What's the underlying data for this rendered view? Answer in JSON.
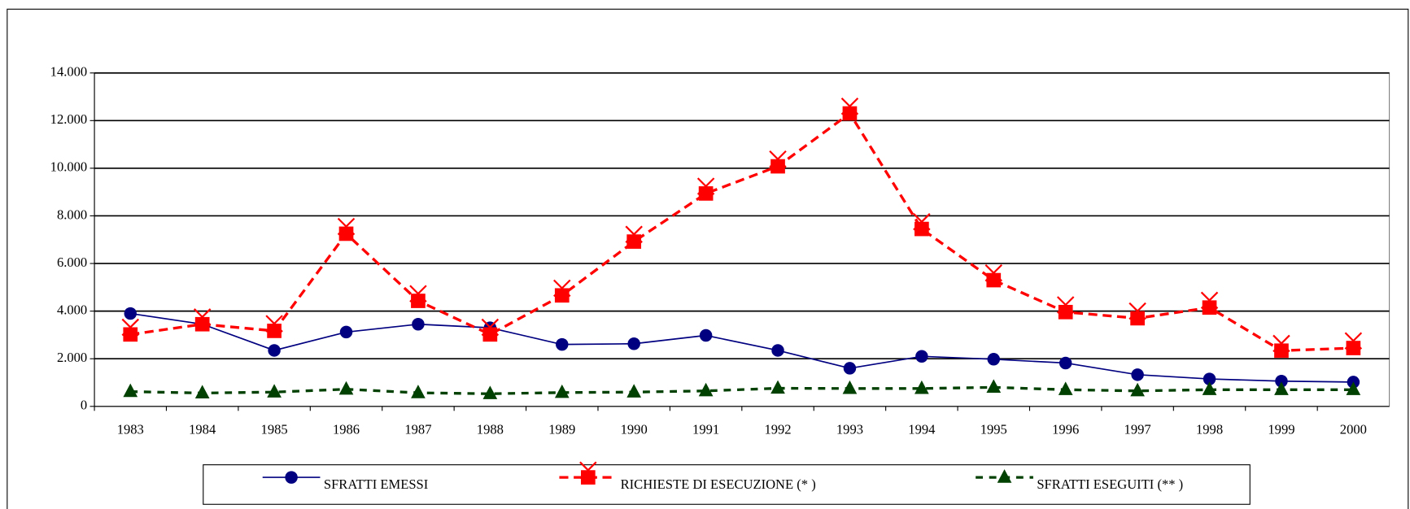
{
  "chart_data": {
    "type": "line",
    "categories": [
      "1983",
      "1984",
      "1985",
      "1986",
      "1987",
      "1988",
      "1989",
      "1990",
      "1991",
      "1992",
      "1993",
      "1994",
      "1995",
      "1996",
      "1997",
      "1998",
      "1999",
      "2000"
    ],
    "series": [
      {
        "name": "SFRATTI EMESSI",
        "color": "#000080",
        "marker": "circle",
        "dash": "none",
        "values": [
          3900,
          3450,
          2350,
          3120,
          3450,
          3300,
          2600,
          2630,
          2980,
          2350,
          1600,
          2100,
          1980,
          1820,
          1330,
          1150,
          1060,
          1020
        ]
      },
      {
        "name": "RICHIESTE DI ESECUZIONE  (* )",
        "color": "#ff0000",
        "marker": "square-x",
        "dash": "10,6",
        "values": [
          3020,
          3450,
          3170,
          7250,
          4430,
          3020,
          4660,
          6920,
          8940,
          10080,
          12300,
          7450,
          5300,
          3960,
          3700,
          4150,
          2340,
          2450
        ]
      },
      {
        "name": "SFRATTI ESEGUITI (** )",
        "color": "#004000",
        "marker": "triangle",
        "dash": "8,7",
        "values": [
          620,
          560,
          600,
          720,
          570,
          530,
          580,
          600,
          650,
          760,
          750,
          750,
          800,
          700,
          650,
          700,
          700,
          700
        ]
      }
    ],
    "ylim": [
      0,
      14000
    ],
    "yticks": [
      0,
      {
        "value": 2000,
        "label": "2.000"
      },
      {
        "value": 4000,
        "label": "4.000"
      },
      {
        "value": 6000,
        "label": "6.000"
      },
      {
        "value": 8000,
        "label": "8.000"
      },
      {
        "value": 10000,
        "label": "10.000"
      },
      {
        "value": 12000,
        "label": "12.000"
      },
      {
        "value": 14000,
        "label": "14.000"
      }
    ],
    "grid": true,
    "legend": "bottom"
  }
}
